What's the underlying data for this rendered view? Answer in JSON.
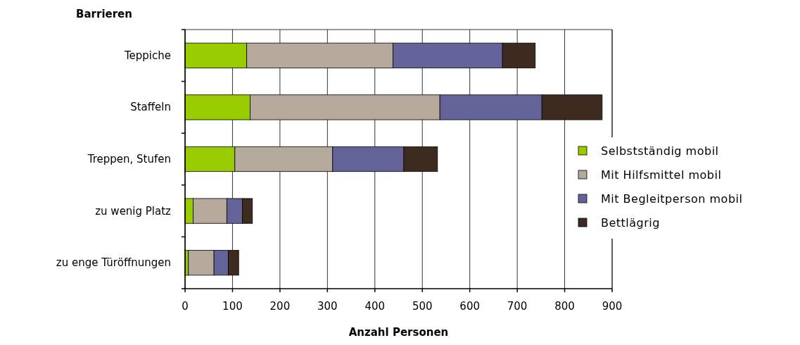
{
  "chart_data": {
    "type": "bar",
    "orientation": "horizontal",
    "stacked": true,
    "ylabel": "Barrieren",
    "xlabel": "Anzahl Personen",
    "categories": [
      "Teppiche",
      "Staffeln",
      "Treppen, Stufen",
      "zu wenig Platz",
      "zu enge Türöffnungen"
    ],
    "series": [
      {
        "name": "Selbstständig mobil",
        "color": "#99cc00",
        "values": [
          130,
          137,
          105,
          17,
          7
        ]
      },
      {
        "name": "Mit Hilfsmittel mobil",
        "color": "#b5a99c",
        "values": [
          308,
          400,
          206,
          71,
          54
        ]
      },
      {
        "name": "Mit Begleitperson mobil",
        "color": "#636399",
        "values": [
          231,
          215,
          150,
          33,
          30
        ]
      },
      {
        "name": "Bettlägrig",
        "color": "#3d2b1f",
        "values": [
          69,
          127,
          71,
          21,
          22
        ]
      }
    ],
    "xlim": [
      0,
      900
    ],
    "xticks": [
      0,
      100,
      200,
      300,
      400,
      500,
      600,
      700,
      800,
      900
    ],
    "grid": "x",
    "legend": "right"
  }
}
